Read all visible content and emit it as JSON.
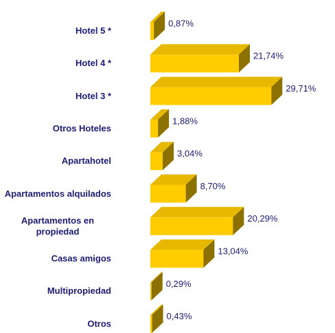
{
  "chart_data": {
    "type": "bar3d-horizontal",
    "categories": [
      "Hotel 5 *",
      "Hotel 4 *",
      "Hotel 3 *",
      "Otros Hoteles",
      "Apartahotel",
      "Apartamentos alquilados",
      "Apartamentos en propiedad",
      "Casas amigos",
      "Multipropiedad",
      "Otros"
    ],
    "values": [
      0.87,
      21.74,
      29.71,
      1.88,
      3.04,
      8.7,
      20.29,
      13.04,
      0.29,
      0.43
    ],
    "value_labels": [
      "0,87%",
      "21,74%",
      "29,71%",
      "1,88%",
      "3,04%",
      "8,70%",
      "20,29%",
      "13,04%",
      "0,29%",
      "0,43%"
    ],
    "xlim": [
      0,
      30
    ],
    "color": "#ffcc00"
  }
}
